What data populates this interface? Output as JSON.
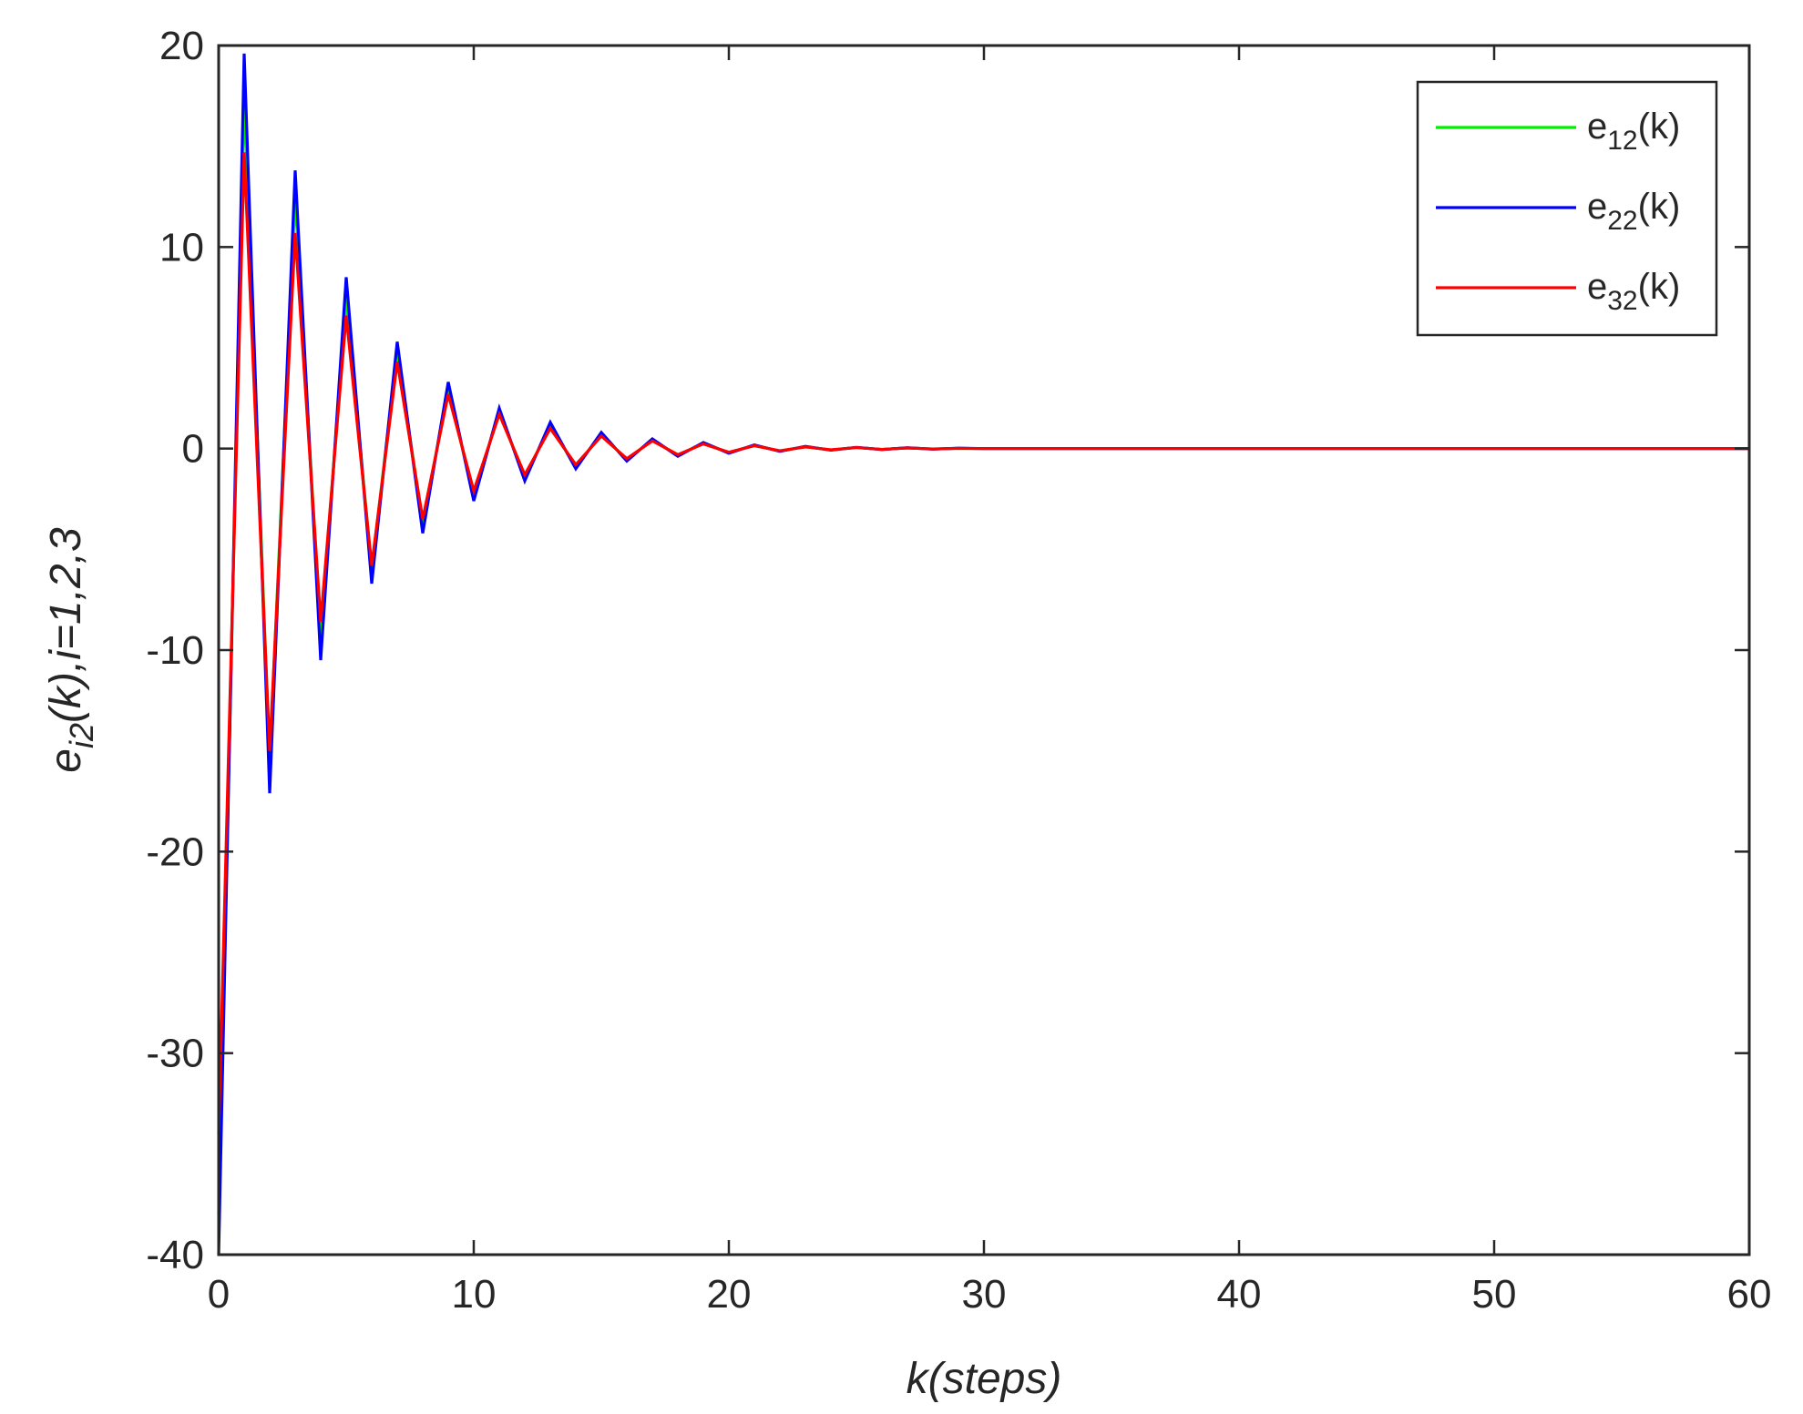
{
  "chart_data": {
    "type": "line",
    "title": "",
    "xlabel": "k(steps)",
    "ylabel": "e_i2(k),i=1,2,3",
    "ylabel_parts": {
      "base": "e",
      "sub": "i2",
      "rest": "(k),i=1,2,3"
    },
    "xlim": [
      0,
      60
    ],
    "ylim": [
      -40,
      20
    ],
    "xticks": [
      0,
      10,
      20,
      30,
      40,
      50,
      60
    ],
    "yticks": [
      -40,
      -30,
      -20,
      -10,
      0,
      10,
      20
    ],
    "grid": false,
    "legend_position": "top-right",
    "x": [
      0,
      1,
      2,
      3,
      4,
      5,
      6,
      7,
      8,
      9,
      10,
      11,
      12,
      13,
      14,
      15,
      16,
      17,
      18,
      19,
      20,
      21,
      22,
      23,
      24,
      25,
      26,
      27,
      28,
      29,
      30,
      60
    ],
    "series": [
      {
        "name": "e12(k)",
        "legend": {
          "base": "e",
          "sub": "12",
          "rest": "(k)"
        },
        "color": "#00ee00",
        "values": [
          -38,
          17.5,
          -15.5,
          12.5,
          -9.3,
          7.5,
          -6.0,
          4.8,
          -3.7,
          2.9,
          -2.3,
          1.8,
          -1.4,
          1.1,
          -0.9,
          0.7,
          -0.55,
          0.42,
          -0.33,
          0.26,
          -0.2,
          0.16,
          -0.12,
          0.09,
          -0.07,
          0.05,
          -0.04,
          0.03,
          -0.02,
          0.01,
          0,
          0
        ]
      },
      {
        "name": "e22(k)",
        "legend": {
          "base": "e",
          "sub": "22",
          "rest": "(k)"
        },
        "color": "#0000ff",
        "values": [
          -40,
          19.6,
          -17.1,
          13.8,
          -10.5,
          8.5,
          -6.7,
          5.3,
          -4.2,
          3.3,
          -2.6,
          2.0,
          -1.6,
          1.3,
          -1.0,
          0.8,
          -0.62,
          0.48,
          -0.38,
          0.3,
          -0.23,
          0.18,
          -0.14,
          0.11,
          -0.08,
          0.06,
          -0.05,
          0.04,
          -0.03,
          0.02,
          0,
          0
        ]
      },
      {
        "name": "e32(k)",
        "legend": {
          "base": "e",
          "sub": "32",
          "rest": "(k)"
        },
        "color": "#ff0000",
        "values": [
          -34,
          14.7,
          -15.0,
          10.7,
          -8.6,
          6.6,
          -5.8,
          4.3,
          -3.5,
          2.7,
          -2.1,
          1.7,
          -1.3,
          1.0,
          -0.8,
          0.62,
          -0.5,
          0.38,
          -0.3,
          0.23,
          -0.18,
          0.14,
          -0.11,
          0.08,
          -0.06,
          0.05,
          -0.04,
          0.03,
          -0.02,
          0.01,
          0,
          0
        ]
      }
    ]
  }
}
